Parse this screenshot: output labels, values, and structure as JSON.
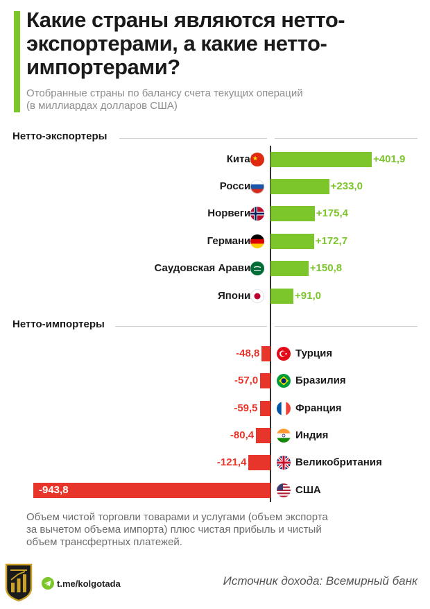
{
  "header": {
    "title": "Какие страны являются нетто-экспортерами, а какие нетто-импортерами?",
    "subtitle_line1": "Отобранные страны по балансу счета текущих операций",
    "subtitle_line2": "(в миллиардах долларов США)"
  },
  "sections": {
    "exporters": "Нетто-экспортеры",
    "importers": "Нетто-импортеры"
  },
  "colors": {
    "positive": "#7cc52a",
    "negative": "#e8352b",
    "accent": "#7cc52a"
  },
  "chart_data": {
    "type": "bar",
    "orientation": "horizontal",
    "categories": [
      "Китай",
      "Россия",
      "Норвегия",
      "Германия",
      "Саудовская Аравия",
      "Япония",
      "Турция",
      "Бразилия",
      "Франция",
      "Индия",
      "Великобритания",
      "США"
    ],
    "values": [
      401.9,
      233.0,
      175.4,
      172.7,
      150.8,
      91.0,
      -48.8,
      -57.0,
      -59.5,
      -80.4,
      -121.4,
      -943.8
    ],
    "value_labels": [
      "+401,9",
      "+233,0",
      "+175,4",
      "+172,7",
      "+150,8",
      "+91,0",
      "-48,8",
      "-57,0",
      "-59,5",
      "-80,4",
      "-121,4",
      "-943,8"
    ],
    "flags": [
      "china-flag-icon",
      "russia-flag-icon",
      "norway-flag-icon",
      "germany-flag-icon",
      "saudi-arabia-flag-icon",
      "japan-flag-icon",
      "turkey-flag-icon",
      "brazil-flag-icon",
      "france-flag-icon",
      "india-flag-icon",
      "uk-flag-icon",
      "usa-flag-icon"
    ],
    "title": "Какие страны являются нетто-экспортерами, а какие нетто-импортерами?",
    "xlabel": "",
    "ylabel": "",
    "xlim": [
      -943.8,
      401.9
    ],
    "grid": false
  },
  "footer": {
    "note_line1": "Объем чистой торговли товарами и услугами (объем экспорта",
    "note_line2": "за вычетом объема импорта) плюс чистая прибыль и чистый",
    "note_line3": "объем трансфертных платежей.",
    "telegram": "t.me/kolgotada",
    "source": "Источник дохода: Всемирный банк"
  }
}
